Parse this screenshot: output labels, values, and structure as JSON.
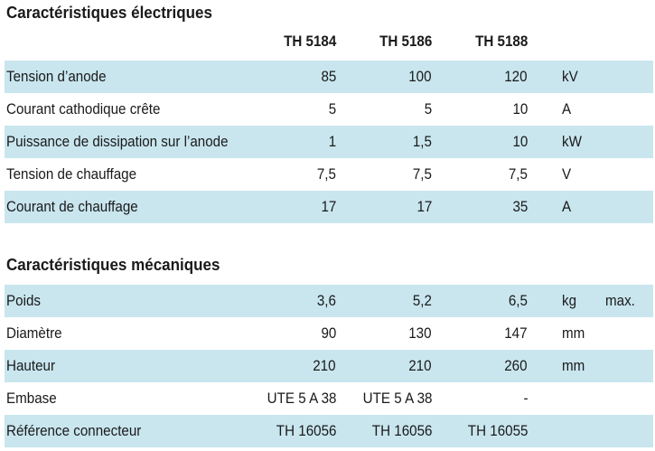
{
  "sections": [
    {
      "title": "Caractéristiques électriques",
      "columns": [
        "TH 5184",
        "TH 5186",
        "TH 5188"
      ],
      "rows": [
        [
          "Tension d’anode",
          "85",
          "100",
          "120",
          "kV"
        ],
        [
          "Courant cathodique crête",
          "5",
          "5",
          "10",
          "A"
        ],
        [
          "Puissance de dissipation sur l’anode",
          "1",
          "1,5",
          "10",
          "kW"
        ],
        [
          "Tension de chauffage",
          "7,5",
          "7,5",
          "7,5",
          "V"
        ],
        [
          "Courant de chauffage",
          "17",
          "17",
          "35",
          "A"
        ]
      ]
    },
    {
      "title": "Caractéristiques mécaniques",
      "rows": [
        [
          "Poids",
          "3,6",
          "5,2",
          "6,5",
          "kg",
          "max."
        ],
        [
          "Diamètre",
          "90",
          "130",
          "147",
          "mm"
        ],
        [
          "Hauteur",
          "210",
          "210",
          "260",
          "mm"
        ],
        [
          "Embase",
          "UTE 5 A 38",
          "UTE 5 A 38",
          "-"
        ],
        [
          "Référence connecteur",
          "TH 16056",
          "TH 16056",
          "TH 16055"
        ]
      ]
    }
  ]
}
